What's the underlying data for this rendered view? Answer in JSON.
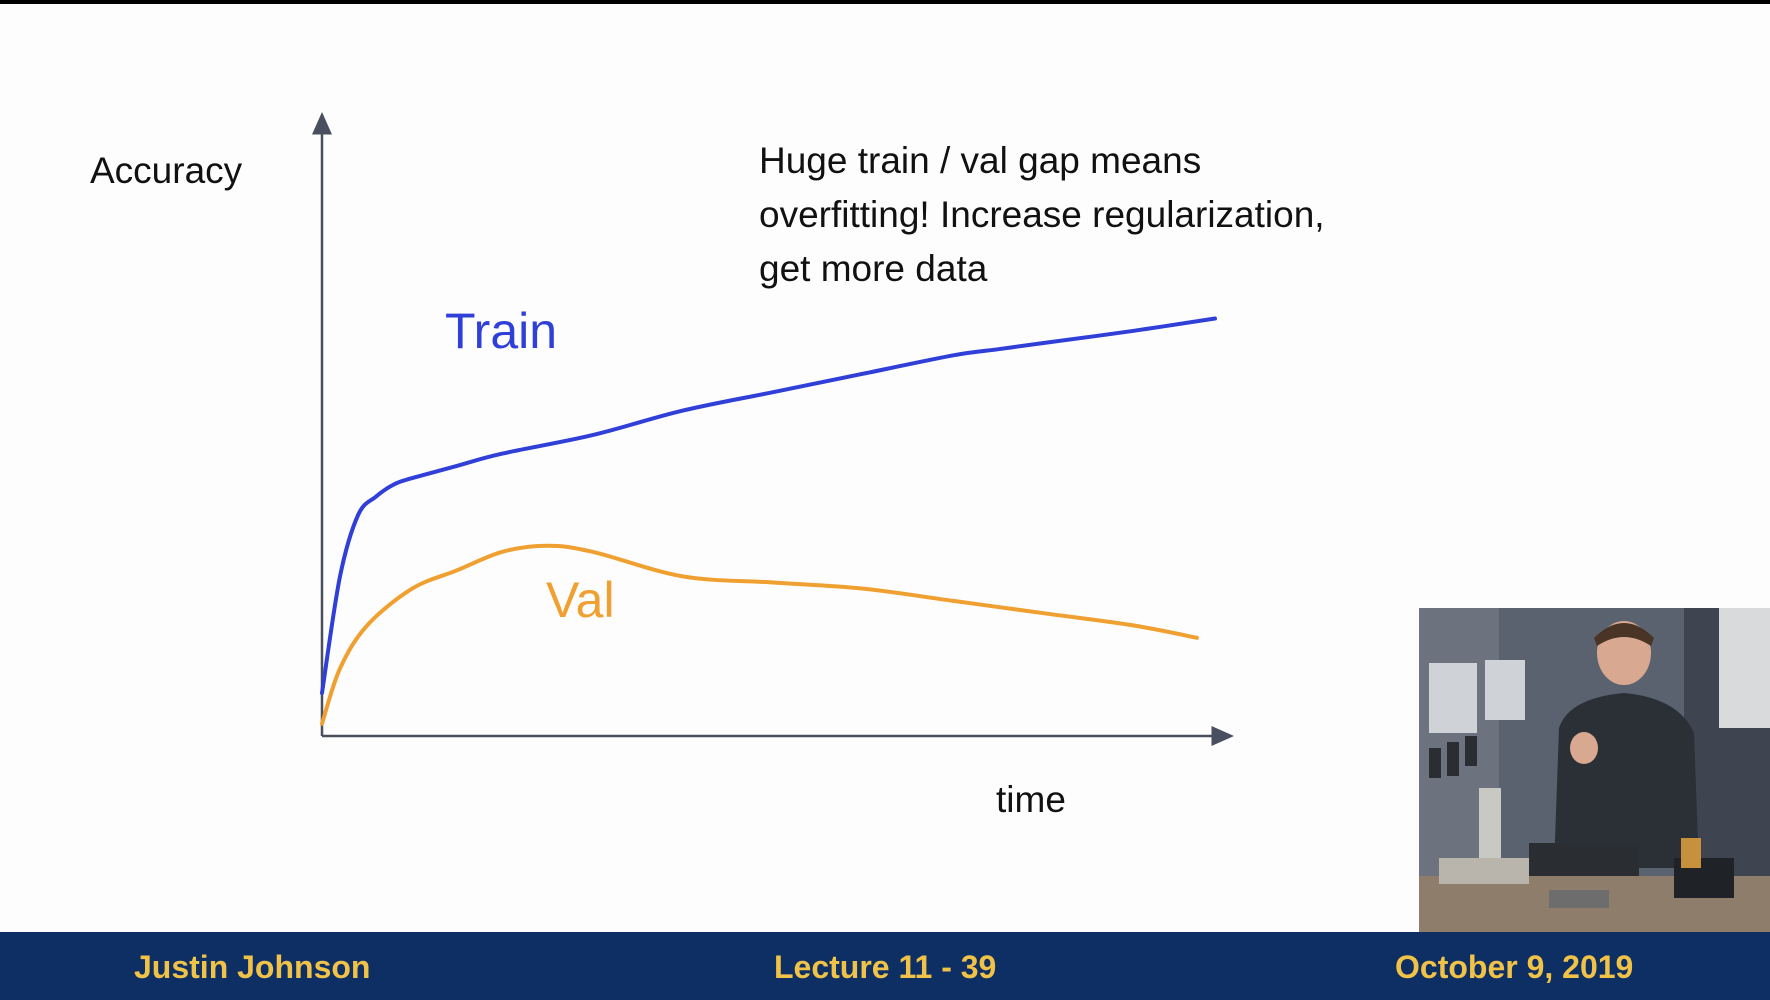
{
  "slide": {
    "annotation_lines": [
      "Huge train / val gap means",
      "overfitting! Increase regularization,",
      "get more data"
    ]
  },
  "chart_data": {
    "type": "line",
    "title": "",
    "xlabel": "time",
    "ylabel": "Accuracy",
    "xlim": [
      0,
      1
    ],
    "ylim": [
      0,
      1
    ],
    "grid": false,
    "legend": "none (series labeled inline)",
    "series": [
      {
        "name": "Train",
        "color": "#2f3fd8",
        "x": [
          0,
          0.02,
          0.04,
          0.06,
          0.08,
          0.1,
          0.15,
          0.2,
          0.3,
          0.4,
          0.5,
          0.6,
          0.7,
          0.75,
          0.8,
          0.9,
          0.99
        ],
        "y": [
          0.07,
          0.26,
          0.36,
          0.39,
          0.41,
          0.42,
          0.44,
          0.46,
          0.49,
          0.53,
          0.56,
          0.59,
          0.62,
          0.63,
          0.64,
          0.66,
          0.68
        ]
      },
      {
        "name": "Val",
        "color": "#f0a030",
        "x": [
          0,
          0.02,
          0.05,
          0.1,
          0.15,
          0.2,
          0.25,
          0.3,
          0.4,
          0.5,
          0.6,
          0.7,
          0.8,
          0.9,
          0.97
        ],
        "y": [
          0.02,
          0.11,
          0.18,
          0.24,
          0.27,
          0.3,
          0.31,
          0.3,
          0.26,
          0.25,
          0.24,
          0.22,
          0.2,
          0.18,
          0.16
        ]
      }
    ]
  },
  "footer": {
    "author": "Justin Johnson",
    "lecture": "Lecture 11 - 39",
    "date": "October 9, 2019"
  },
  "webcam": {
    "description_icon": "presenter-video-icon"
  }
}
